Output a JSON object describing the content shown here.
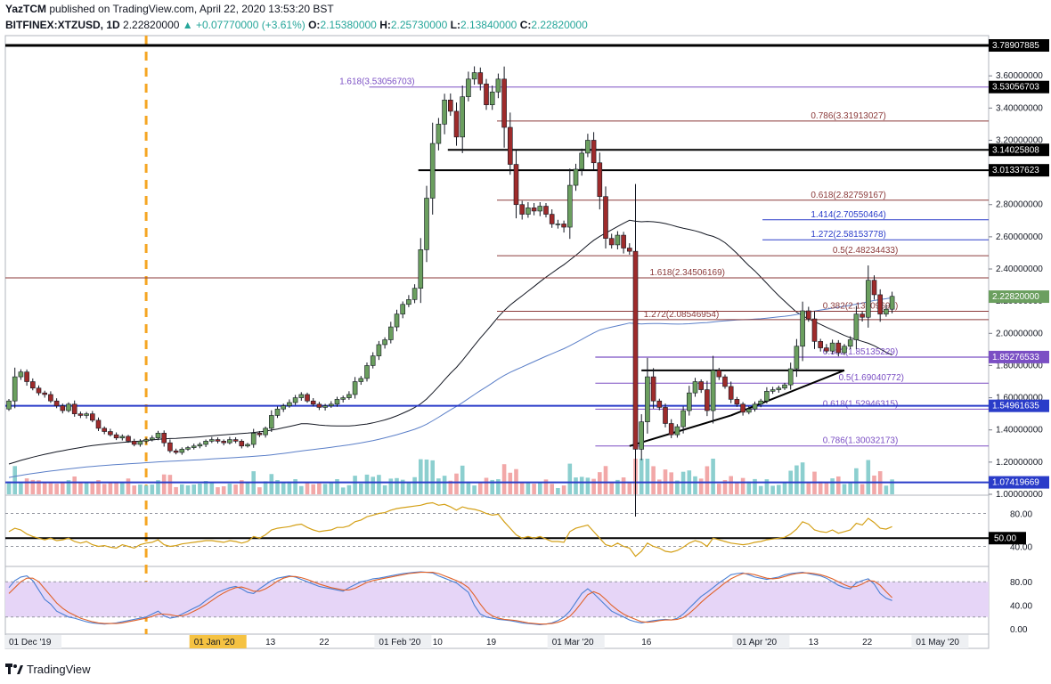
{
  "header": {
    "author": "YazTCM",
    "published_text": " published on TradingView.com, April 22, 2020 13:53:20 BST",
    "symbol": "BITFINEX:XTZUSD, 1D",
    "last": "2.22820000",
    "change": "▲ +0.07770000 (+3.61%)",
    "o_label": "O:",
    "o": "2.15380000",
    "h_label": "H:",
    "h": "2.25730000",
    "l_label": "L:",
    "l": "2.13840000",
    "c_label": "C:",
    "c": "2.22820000"
  },
  "footer": {
    "brand": "TradingView"
  },
  "colors": {
    "up": "#6b9f5f",
    "down": "#9e2b2b",
    "vol_up": "#8ccfcf",
    "vol_down": "#f2a8a8",
    "purple": "#7b4fc4",
    "brown": "#8b3a3a",
    "blue": "#2a3cc9",
    "black": "#000000",
    "rsi": "#d4a017",
    "stoch_k": "#4a7fd4",
    "stoch_d": "#e0622a",
    "stoch_band": "#e6d5f7",
    "last_price": "#6b9f5f"
  },
  "chart_data": {
    "type": "candlestick",
    "symbol": "BITFINEX:XTZUSD",
    "interval": "1D",
    "price_scale": {
      "min": 1.0,
      "max": 3.85,
      "ticks": [
        "1.00000000",
        "1.20000000",
        "1.40000000",
        "1.60000000",
        "1.80000000",
        "2.00000000",
        "2.20000000",
        "2.40000000",
        "2.60000000",
        "2.80000000",
        "3.20000000",
        "3.40000000",
        "3.60000000"
      ]
    },
    "x_labels": [
      {
        "label": "01 Dec '19",
        "day": 0,
        "boxed": true
      },
      {
        "label": "01 Jan '20",
        "day": 31,
        "boxed": true,
        "highlight": true
      },
      {
        "label": "13",
        "day": 43
      },
      {
        "label": "22",
        "day": 52
      },
      {
        "label": "01 Feb '20",
        "day": 62,
        "boxed": true
      },
      {
        "label": "10",
        "day": 71
      },
      {
        "label": "19",
        "day": 80
      },
      {
        "label": "01 Mar '20",
        "day": 91,
        "boxed": true
      },
      {
        "label": "16",
        "day": 106
      },
      {
        "label": "01 Apr '20",
        "day": 122,
        "boxed": true
      },
      {
        "label": "13",
        "day": 134
      },
      {
        "label": "22",
        "day": 143
      },
      {
        "label": "01 May '20",
        "day": 152,
        "boxed": true
      }
    ],
    "closes": [
      1.58,
      1.73,
      1.76,
      1.7,
      1.66,
      1.63,
      1.62,
      1.58,
      1.55,
      1.52,
      1.56,
      1.5,
      1.49,
      1.5,
      1.46,
      1.41,
      1.39,
      1.37,
      1.35,
      1.36,
      1.33,
      1.31,
      1.33,
      1.34,
      1.35,
      1.38,
      1.32,
      1.27,
      1.26,
      1.28,
      1.29,
      1.3,
      1.31,
      1.33,
      1.34,
      1.33,
      1.32,
      1.34,
      1.33,
      1.3,
      1.31,
      1.38,
      1.37,
      1.41,
      1.49,
      1.53,
      1.55,
      1.57,
      1.6,
      1.62,
      1.58,
      1.56,
      1.54,
      1.55,
      1.56,
      1.59,
      1.6,
      1.62,
      1.7,
      1.72,
      1.8,
      1.86,
      1.93,
      1.96,
      2.04,
      2.12,
      2.18,
      2.21,
      2.28,
      2.52,
      2.84,
      3.18,
      3.3,
      3.45,
      3.38,
      3.22,
      3.47,
      3.58,
      3.62,
      3.55,
      3.42,
      3.5,
      3.58,
      3.28,
      3.05,
      2.8,
      2.74,
      2.78,
      2.76,
      2.79,
      2.74,
      2.68,
      2.68,
      2.66,
      2.92,
      3.02,
      3.12,
      3.2,
      3.06,
      2.85,
      2.59,
      2.55,
      2.61,
      2.53,
      2.51,
      1.28,
      1.45,
      1.73,
      1.58,
      1.54,
      1.44,
      1.37,
      1.42,
      1.52,
      1.63,
      1.7,
      1.65,
      1.52,
      1.77,
      1.73,
      1.67,
      1.59,
      1.56,
      1.51,
      1.53,
      1.56,
      1.58,
      1.64,
      1.65,
      1.66,
      1.68,
      1.78,
      1.92,
      2.14,
      2.09,
      1.95,
      1.91,
      1.89,
      1.94,
      1.88,
      1.92,
      1.96,
      2.12,
      2.1,
      2.33,
      2.24,
      2.12,
      2.15,
      2.23
    ],
    "current_price": 2.2282,
    "levels": [
      {
        "price": 3.78907885,
        "label": "3.78907885",
        "color": "black",
        "x0": 0,
        "width": 3,
        "tag_bg": "black"
      },
      {
        "price": 3.53056703,
        "label": "3.53056703",
        "color": "purple",
        "x0": 0.37,
        "width": 1,
        "text": "1.618(3.53056703)",
        "text_day": 68
      },
      {
        "price": 3.31913027,
        "label": "",
        "color": "brown",
        "x0": 0.5,
        "width": 1,
        "text": "0.786(3.31913027)",
        "text_day": 147,
        "text_color": "brown"
      },
      {
        "price": 3.14025808,
        "label": "3.14025808",
        "color": "black",
        "x0": 0.45,
        "width": 2,
        "tag_bg": "black"
      },
      {
        "price": 3.01337623,
        "label": "3.01337623",
        "color": "black",
        "x0": 0.42,
        "width": 2,
        "tag_bg": "black"
      },
      {
        "price": 2.82759167,
        "label": "",
        "color": "brown",
        "x0": 0.5,
        "width": 1,
        "text": "0.618(2.82759167)",
        "text_day": 147,
        "text_color": "brown"
      },
      {
        "price": 2.70550464,
        "label": "",
        "color": "blue",
        "x0": 0.77,
        "width": 1,
        "text": "1.414(2.70550464)",
        "text_day": 147,
        "text_color": "blue"
      },
      {
        "price": 2.58153778,
        "label": "",
        "color": "blue",
        "x0": 0.77,
        "width": 1,
        "text": "1.272(2.58153778)",
        "text_day": 147,
        "text_color": "blue"
      },
      {
        "price": 2.48234433,
        "label": "",
        "color": "brown",
        "x0": 0.5,
        "width": 1,
        "text": "0.5(2.48234433)",
        "text_day": 149,
        "text_color": "brown"
      },
      {
        "price": 2.34506169,
        "label": "",
        "color": "brown",
        "x0": 0,
        "width": 1,
        "text": "1.618(2.34506169)",
        "text_day": 120,
        "text_color": "brown"
      },
      {
        "price": 2.13709698,
        "label": "",
        "color": "brown",
        "x0": 0.5,
        "width": 1,
        "text": "0.382(2.13709698)",
        "text_day": 149,
        "text_color": "brown"
      },
      {
        "price": 2.08546954,
        "label": "",
        "color": "brown",
        "x0": 0.5,
        "width": 1,
        "text": "1.272(2.08546954)",
        "text_day": 119,
        "text_color": "brown"
      },
      {
        "price": 1.85135229,
        "label": "",
        "color": "purple",
        "x0": 0.6,
        "width": 1,
        "text": "0.382(1.85135229)",
        "text_day": 149,
        "text_color": "purple"
      },
      {
        "price": 1.85276533,
        "label": "1.85276533",
        "color": "purple",
        "x0": 0.6,
        "width": 1,
        "tag_bg": "purple"
      },
      {
        "price": 1.69040772,
        "label": "",
        "color": "purple",
        "x0": 0.6,
        "width": 1,
        "text": "0.5(1.69040772)",
        "text_day": 150,
        "text_color": "purple"
      },
      {
        "price": 1.52946315,
        "label": "",
        "color": "purple",
        "x0": 0.6,
        "width": 1,
        "text": "0.618(1.52946315)",
        "text_day": 149,
        "text_color": "purple"
      },
      {
        "price": 1.54961635,
        "label": "1.54961635",
        "color": "blue",
        "x0": 0,
        "width": 2,
        "tag_bg": "blue"
      },
      {
        "price": 1.30032173,
        "label": "",
        "color": "purple",
        "x0": 0.6,
        "width": 1,
        "text": "0.786(1.30032173)",
        "text_day": 149,
        "text_color": "purple"
      },
      {
        "price": 1.07419669,
        "label": "1.07419669",
        "color": "blue",
        "x0": 0,
        "width": 2,
        "tag_bg": "blue"
      }
    ],
    "rsi": {
      "ticks": [
        "80.00",
        "40.00"
      ],
      "level_label": "50.00",
      "values": [
        58,
        62,
        60,
        55,
        52,
        50,
        48,
        50,
        47,
        48,
        50,
        46,
        44,
        46,
        42,
        40,
        41,
        39,
        38,
        42,
        40,
        38,
        42,
        44,
        45,
        48,
        42,
        40,
        41,
        43,
        44,
        45,
        46,
        47,
        47,
        46,
        45,
        47,
        46,
        44,
        46,
        52,
        50,
        54,
        60,
        62,
        63,
        64,
        66,
        67,
        63,
        60,
        58,
        59,
        60,
        63,
        63,
        65,
        70,
        72,
        76,
        78,
        80,
        81,
        84,
        86,
        87,
        88,
        89,
        90,
        92,
        93,
        90,
        91,
        88,
        84,
        88,
        86,
        85,
        83,
        80,
        78,
        79,
        70,
        62,
        54,
        50,
        52,
        50,
        52,
        49,
        46,
        46,
        45,
        58,
        62,
        64,
        66,
        58,
        50,
        42,
        40,
        44,
        40,
        38,
        28,
        34,
        44,
        40,
        38,
        34,
        33,
        35,
        39,
        44,
        47,
        45,
        40,
        50,
        48,
        46,
        44,
        43,
        42,
        43,
        45,
        46,
        48,
        49,
        50,
        51,
        55,
        61,
        70,
        67,
        60,
        58,
        57,
        60,
        56,
        58,
        60,
        68,
        66,
        74,
        69,
        62,
        61,
        64
      ]
    },
    "stoch": {
      "ticks": [
        "80.00",
        "40.00",
        "0.00"
      ],
      "k": [
        70,
        82,
        88,
        90,
        82,
        66,
        50,
        42,
        30,
        25,
        20,
        18,
        15,
        12,
        10,
        9,
        8,
        9,
        10,
        12,
        14,
        16,
        18,
        20,
        25,
        30,
        22,
        18,
        20,
        25,
        30,
        35,
        40,
        48,
        55,
        62,
        66,
        70,
        72,
        68,
        62,
        60,
        68,
        75,
        82,
        86,
        88,
        90,
        88,
        84,
        80,
        76,
        72,
        70,
        68,
        66,
        64,
        70,
        75,
        80,
        82,
        85,
        86,
        88,
        90,
        92,
        94,
        95,
        96,
        97,
        96,
        95,
        90,
        86,
        82,
        78,
        70,
        62,
        40,
        25,
        20,
        18,
        16,
        15,
        14,
        12,
        10,
        9,
        8,
        7,
        8,
        10,
        14,
        20,
        30,
        45,
        60,
        68,
        60,
        50,
        40,
        30,
        25,
        20,
        15,
        12,
        10,
        12,
        14,
        15,
        16,
        15,
        18,
        25,
        35,
        45,
        55,
        62,
        70,
        78,
        85,
        92,
        94,
        95,
        92,
        88,
        86,
        84,
        86,
        88,
        92,
        94,
        95,
        96,
        94,
        92,
        90,
        86,
        80,
        74,
        70,
        68,
        78,
        82,
        85,
        76,
        60,
        52,
        48
      ],
      "d": [
        60,
        70,
        80,
        86,
        86,
        80,
        68,
        56,
        44,
        35,
        28,
        23,
        18,
        15,
        12,
        10,
        9,
        9,
        9,
        10,
        12,
        14,
        16,
        18,
        21,
        25,
        25,
        24,
        22,
        22,
        25,
        30,
        35,
        41,
        48,
        55,
        61,
        66,
        70,
        71,
        68,
        64,
        64,
        68,
        74,
        81,
        86,
        89,
        89,
        87,
        84,
        80,
        76,
        73,
        70,
        68,
        66,
        66,
        69,
        74,
        79,
        82,
        84,
        86,
        88,
        90,
        92,
        94,
        95,
        96,
        96,
        96,
        94,
        90,
        86,
        82,
        77,
        70,
        57,
        42,
        29,
        22,
        18,
        16,
        15,
        14,
        12,
        10,
        9,
        8,
        8,
        9,
        11,
        15,
        21,
        32,
        45,
        58,
        63,
        59,
        50,
        40,
        32,
        25,
        20,
        16,
        12,
        11,
        12,
        14,
        15,
        15,
        16,
        19,
        26,
        35,
        45,
        54,
        62,
        70,
        78,
        85,
        90,
        94,
        94,
        92,
        89,
        86,
        85,
        86,
        89,
        92,
        94,
        95,
        95,
        94,
        92,
        89,
        85,
        80,
        75,
        71,
        72,
        76,
        82,
        81,
        74,
        63,
        53
      ],
      "band": [
        20,
        80
      ]
    },
    "moving_averages": [
      {
        "name": "",
        "color": "black",
        "description": "slow average (black)"
      },
      {
        "name": "",
        "color": "blue",
        "description": "slower average (blue)"
      }
    ],
    "trendlines": [
      {
        "from_day": 104,
        "from_price": 1.3,
        "to_day": 121,
        "to_price": 1.49
      },
      {
        "from_day": 121,
        "from_price": 1.49,
        "to_day": 140,
        "to_price": 1.77
      },
      {
        "from_day": 106,
        "from_price": 1.77,
        "to_day": 140,
        "to_price": 1.77
      }
    ],
    "event_day": 23
  }
}
